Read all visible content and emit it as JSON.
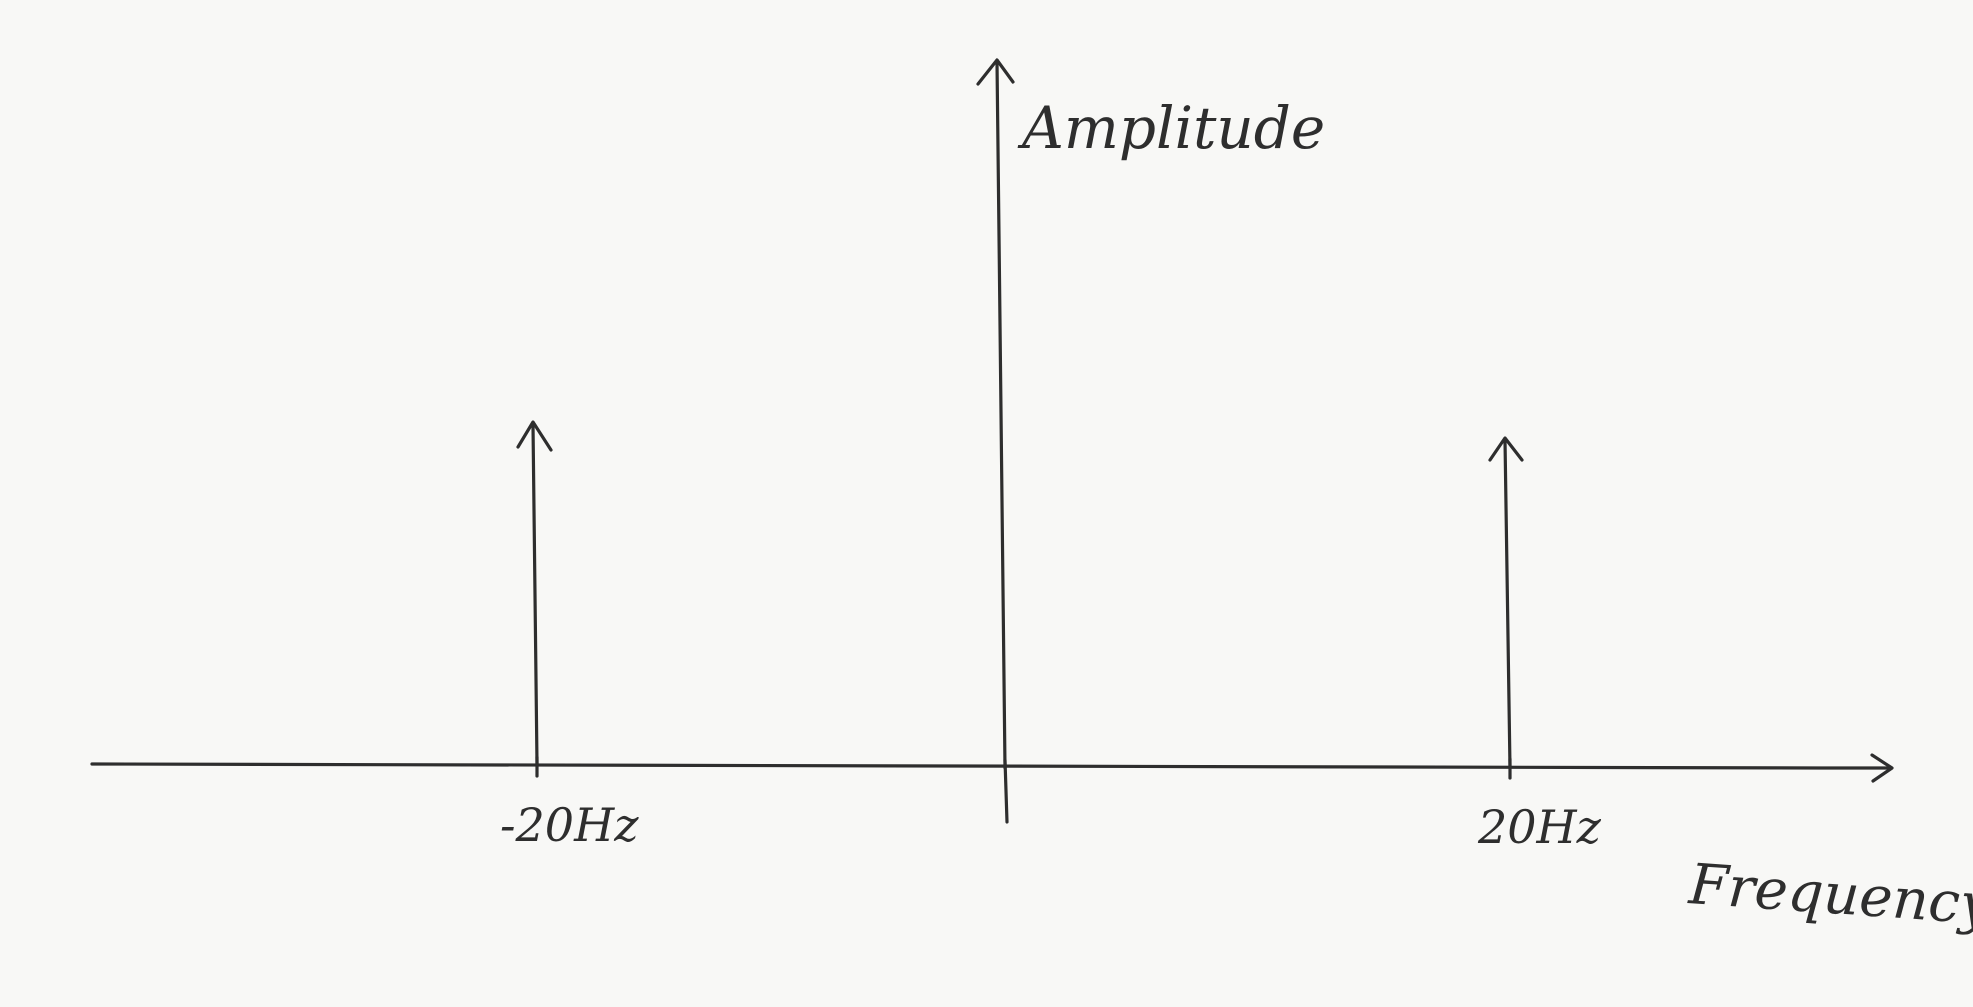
{
  "axes": {
    "y_label": "Amplitude",
    "x_label": "Frequency"
  },
  "impulses": [
    {
      "label": "-20Hz",
      "frequency_hz": -20
    },
    {
      "label": "20Hz",
      "frequency_hz": 20
    }
  ],
  "colors": {
    "ink": "#2e2e2e",
    "paper": "#f8f8f6"
  }
}
